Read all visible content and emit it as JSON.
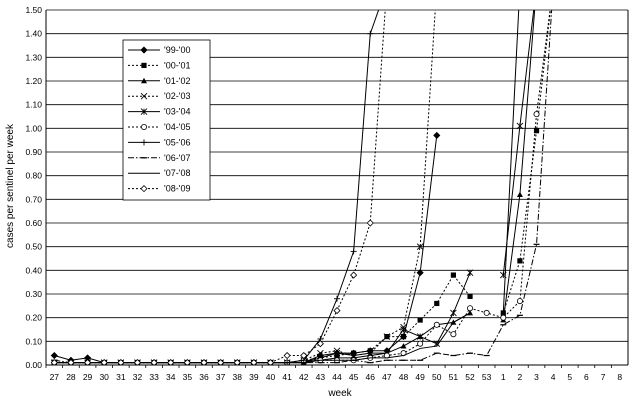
{
  "chart_data": {
    "type": "line",
    "title": "",
    "xlabel": "week",
    "ylabel": "cases per sentinel per week",
    "ylim": [
      0,
      1.5
    ],
    "ystep": 0.1,
    "grid": "horizontal",
    "legend_position": "top-left",
    "categories": [
      "27",
      "28",
      "29",
      "30",
      "31",
      "32",
      "33",
      "34",
      "35",
      "36",
      "37",
      "38",
      "39",
      "40",
      "41",
      "42",
      "43",
      "44",
      "45",
      "46",
      "47",
      "48",
      "49",
      "50",
      "51",
      "52",
      "53",
      "1",
      "2",
      "3",
      "4",
      "5",
      "6",
      "7",
      "8"
    ],
    "series": [
      {
        "name": "'99-'00",
        "color": "#000000",
        "dash": "solid",
        "marker": "diamond-filled",
        "values": [
          0.04,
          0.02,
          0.03,
          0.01,
          0.01,
          0.01,
          0.01,
          0.01,
          0.01,
          0.01,
          0.01,
          0.01,
          0.01,
          0.01,
          0.01,
          0.01,
          0.04,
          0.05,
          0.05,
          0.06,
          0.06,
          0.12,
          0.39,
          0.97,
          null,
          null,
          null,
          null,
          null,
          null,
          null,
          null,
          null,
          null,
          null
        ]
      },
      {
        "name": "'00-'01",
        "color": "#000000",
        "dash": "dotted",
        "marker": "square-filled",
        "values": [
          0.01,
          0.01,
          0.01,
          0.01,
          0.01,
          0.01,
          0.01,
          0.01,
          0.01,
          0.01,
          0.01,
          0.01,
          0.01,
          0.01,
          0.01,
          0.02,
          0.03,
          0.04,
          0.05,
          0.06,
          0.12,
          0.12,
          0.19,
          0.26,
          0.38,
          0.29,
          null,
          0.22,
          0.44,
          0.99,
          1.6,
          null,
          null,
          null,
          null
        ]
      },
      {
        "name": "'01-'02",
        "color": "#000000",
        "dash": "solid",
        "marker": "triangle-filled",
        "values": [
          0.01,
          0.01,
          0.01,
          0.01,
          0.01,
          0.01,
          0.01,
          0.01,
          0.01,
          0.01,
          0.01,
          0.01,
          0.01,
          0.01,
          0.01,
          0.01,
          0.02,
          0.03,
          0.03,
          0.04,
          0.05,
          0.08,
          0.12,
          0.17,
          0.18,
          0.22,
          null,
          0.19,
          0.72,
          1.6,
          null,
          null,
          null,
          null,
          null
        ]
      },
      {
        "name": "'02-'03",
        "color": "#000000",
        "dash": "dotted",
        "marker": "x",
        "values": [
          0.01,
          0.01,
          0.01,
          0.01,
          0.01,
          0.01,
          0.01,
          0.01,
          0.01,
          0.01,
          0.01,
          0.01,
          0.01,
          0.01,
          0.01,
          0.02,
          0.05,
          0.06,
          0.04,
          0.05,
          0.12,
          0.16,
          0.5,
          1.6,
          null,
          null,
          null,
          null,
          null,
          null,
          null,
          null,
          null,
          null,
          null
        ]
      },
      {
        "name": "'03-'04",
        "color": "#000000",
        "dash": "solid",
        "marker": "asterisk",
        "values": [
          0.01,
          0.01,
          0.01,
          0.01,
          0.01,
          0.01,
          0.01,
          0.01,
          0.01,
          0.01,
          0.01,
          0.01,
          0.01,
          0.01,
          0.01,
          0.01,
          0.03,
          0.05,
          0.04,
          0.05,
          0.05,
          0.15,
          0.12,
          0.09,
          0.22,
          0.39,
          null,
          0.38,
          1.01,
          1.6,
          null,
          null,
          null,
          null,
          null
        ]
      },
      {
        "name": "'04-'05",
        "color": "#000000",
        "dash": "dotted",
        "marker": "circle-open",
        "values": [
          0.01,
          0.01,
          0.01,
          0.01,
          0.01,
          0.01,
          0.01,
          0.01,
          0.01,
          0.01,
          0.01,
          0.01,
          0.01,
          0.01,
          0.01,
          0.02,
          0.02,
          0.02,
          0.02,
          0.03,
          0.04,
          0.05,
          0.09,
          0.17,
          0.13,
          0.24,
          0.22,
          0.2,
          0.27,
          1.06,
          1.6,
          null,
          null,
          null,
          null
        ]
      },
      {
        "name": "'05-'06",
        "color": "#000000",
        "dash": "solid",
        "marker": "plus",
        "values": [
          0.01,
          0.01,
          0.01,
          0.01,
          0.01,
          0.01,
          0.01,
          0.01,
          0.01,
          0.01,
          0.01,
          0.01,
          0.01,
          0.01,
          0.01,
          0.02,
          0.11,
          0.28,
          0.48,
          1.4,
          1.6,
          null,
          null,
          null,
          null,
          null,
          null,
          null,
          null,
          null,
          null,
          null,
          null,
          null,
          null
        ]
      },
      {
        "name": "'06-'07",
        "color": "#000000",
        "dash": "dashdot",
        "marker": "dash",
        "values": [
          0.02,
          0.01,
          0.01,
          0.01,
          0.01,
          0.01,
          0.01,
          0.01,
          0.01,
          0.01,
          0.01,
          0.01,
          0.01,
          0.01,
          0.01,
          0.01,
          0.01,
          0.01,
          0.02,
          0.01,
          0.02,
          0.02,
          0.02,
          0.05,
          0.04,
          0.05,
          0.04,
          0.17,
          0.21,
          0.51,
          1.6,
          null,
          null,
          null,
          null
        ]
      },
      {
        "name": "'07-'08",
        "color": "#000000",
        "dash": "solid",
        "marker": "none",
        "values": [
          0.01,
          0.01,
          0.01,
          0.01,
          0.01,
          0.01,
          0.01,
          0.01,
          0.01,
          0.01,
          0.01,
          0.01,
          0.01,
          0.01,
          0.01,
          0.01,
          0.02,
          0.02,
          0.02,
          0.03,
          0.03,
          0.04,
          0.07,
          0.08,
          0.18,
          0.22,
          null,
          0.22,
          1.6,
          null,
          null,
          null,
          null,
          null,
          null
        ]
      },
      {
        "name": "'08-'09",
        "color": "#000000",
        "dash": "dotted",
        "marker": "diamond-open",
        "values": [
          0.01,
          0.01,
          0.01,
          0.01,
          0.01,
          0.01,
          0.01,
          0.01,
          0.01,
          0.01,
          0.01,
          0.01,
          0.01,
          0.01,
          0.04,
          0.04,
          0.09,
          0.23,
          0.38,
          0.6,
          1.6,
          null,
          null,
          null,
          null,
          null,
          null,
          null,
          null,
          null,
          null,
          null,
          null,
          null,
          null
        ]
      }
    ]
  }
}
